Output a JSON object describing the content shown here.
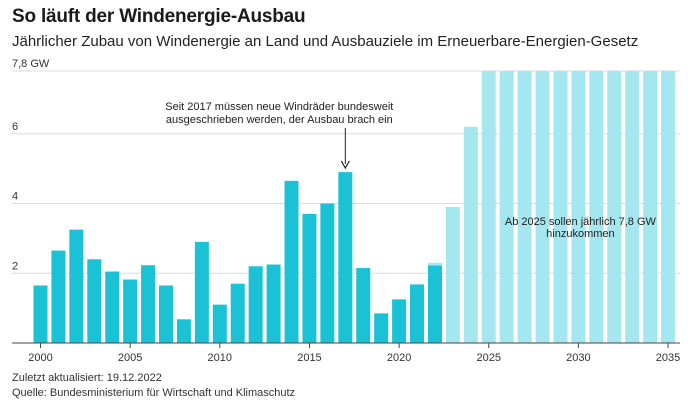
{
  "header": {
    "title": "So läuft der Windenergie-Ausbau",
    "subtitle": "Jährlicher Zubau von Windenergie an Land und Ausbauziele im Erneuerbare-Energien-Gesetz"
  },
  "footer": {
    "updated": "Zuletzt aktualisiert: 19.12.2022",
    "source": "Quelle: Bundesministerium für Wirtschaft und Klimaschutz"
  },
  "chart_data": {
    "type": "bar",
    "x": [
      2000,
      2001,
      2002,
      2003,
      2004,
      2005,
      2006,
      2007,
      2008,
      2009,
      2010,
      2011,
      2012,
      2013,
      2014,
      2015,
      2016,
      2017,
      2018,
      2019,
      2020,
      2021,
      2022,
      2023,
      2024,
      2025,
      2026,
      2027,
      2028,
      2029,
      2030,
      2031,
      2032,
      2033,
      2034,
      2035
    ],
    "values": [
      1.65,
      2.65,
      3.25,
      2.4,
      2.05,
      1.82,
      2.23,
      1.65,
      0.68,
      2.9,
      1.1,
      1.7,
      2.2,
      2.25,
      4.65,
      3.7,
      4.0,
      4.9,
      2.15,
      0.85,
      1.25,
      1.68,
      2.22,
      3.9,
      6.2,
      7.8,
      7.8,
      7.8,
      7.8,
      7.8,
      7.8,
      7.8,
      7.8,
      7.8,
      7.8,
      7.8
    ],
    "target_2022": 2.3,
    "actual_through": 2022,
    "colors": {
      "actual": "#1bc2d6",
      "target": "#a5e7ef",
      "grid": "#dcdcdc",
      "axis": "#444444"
    },
    "ylim": [
      0,
      7.8
    ],
    "y_ticks": [
      {
        "value": 2,
        "label": "2"
      },
      {
        "value": 4,
        "label": "4"
      },
      {
        "value": 6,
        "label": "6"
      },
      {
        "value": 7.8,
        "label": "7,8 GW"
      }
    ],
    "x_ticks": [
      {
        "value": 2000,
        "label": "2000"
      },
      {
        "value": 2005,
        "label": "2005"
      },
      {
        "value": 2010,
        "label": "2010"
      },
      {
        "value": 2015,
        "label": "2015"
      },
      {
        "value": 2020,
        "label": "2020"
      },
      {
        "value": 2025,
        "label": "2025"
      },
      {
        "value": 2030,
        "label": "2030"
      },
      {
        "value": 2035,
        "label": "2035"
      }
    ],
    "annotations": [
      {
        "year": 2017,
        "lines": [
          "Seit 2017 müssen neue Windräder bundesweit",
          "ausgeschrieben werden, der Ausbau brach ein"
        ]
      },
      {
        "year": 2030,
        "value": 3.1,
        "lines": [
          "Ab 2025 sollen jährlich 7,8 GW",
          "hinzukommen"
        ]
      }
    ]
  }
}
